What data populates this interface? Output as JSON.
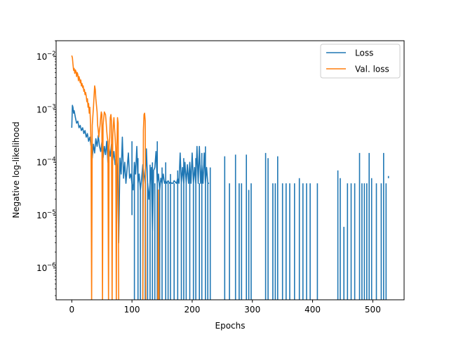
{
  "chart_data": {
    "type": "line",
    "title": "",
    "xlabel": "Epochs",
    "ylabel": "Negative log-likelihood",
    "yscale": "log",
    "xlim": [
      -26,
      552
    ],
    "ylim": [
      2.5e-07,
      0.02
    ],
    "xticks": [
      {
        "value": 0,
        "label": "0"
      },
      {
        "value": 100,
        "label": "100"
      },
      {
        "value": 200,
        "label": "200"
      },
      {
        "value": 300,
        "label": "300"
      },
      {
        "value": 400,
        "label": "400"
      },
      {
        "value": 500,
        "label": "500"
      }
    ],
    "yticks": [
      {
        "value": 1e-06,
        "base": "10",
        "exp": "−6"
      },
      {
        "value": 1e-05,
        "base": "10",
        "exp": "−5"
      },
      {
        "value": 0.0001,
        "base": "10",
        "exp": "−4"
      },
      {
        "value": 0.001,
        "base": "10",
        "exp": "−3"
      },
      {
        "value": 0.01,
        "base": "10",
        "exp": "−2"
      }
    ],
    "grid": false,
    "legend_position": "top-right",
    "series": [
      {
        "name": "Loss",
        "color": "#1f77b4",
        "points": [
          [
            0,
            0.00045
          ],
          [
            1,
            0.0012
          ],
          [
            2,
            0.0011
          ],
          [
            3,
            0.00085
          ],
          [
            4,
            0.00095
          ],
          [
            6,
            0.0007
          ],
          [
            8,
            0.00055
          ],
          [
            10,
            0.0006
          ],
          [
            12,
            0.00045
          ],
          [
            14,
            0.0005
          ],
          [
            16,
            0.0004
          ],
          [
            18,
            0.00045
          ],
          [
            20,
            0.00035
          ],
          [
            22,
            0.0004
          ],
          [
            24,
            0.0003
          ],
          [
            26,
            0.00035
          ],
          [
            28,
            0.00025
          ],
          [
            30,
            0.0003
          ],
          [
            32,
            0.0002
          ],
          [
            34,
            0.00012
          ],
          [
            36,
            0.00022
          ],
          [
            38,
            0.00015
          ],
          [
            40,
            0.00028
          ],
          [
            42,
            0.0002
          ],
          [
            44,
            0.00032
          ],
          [
            46,
            0.0002
          ],
          [
            48,
            0.00016
          ],
          [
            50,
            0.00024
          ],
          [
            52,
            0.00012
          ],
          [
            54,
            0.0002
          ],
          [
            56,
            0.00014
          ],
          [
            58,
            0.00025
          ],
          [
            60,
            0.0001
          ],
          [
            62,
            0.00018
          ],
          [
            64,
            0.00013
          ],
          [
            66,
            0.00022
          ],
          [
            68,
            0.00011
          ],
          [
            70,
            0.00016
          ],
          [
            72,
            9e-05
          ],
          [
            74,
            0.00013
          ],
          [
            76,
            8e-05
          ],
          [
            78,
            3e-06
          ],
          [
            80,
            0.00012
          ],
          [
            82,
            6e-05
          ],
          [
            84,
            0.0003
          ],
          [
            86,
            5e-05
          ],
          [
            88,
            0.0001
          ],
          [
            90,
            4e-05
          ],
          [
            92,
            8e-05
          ],
          [
            94,
            0.00015
          ],
          [
            96,
            5e-05
          ],
          [
            98,
            6e-05
          ],
          [
            100,
            4e-05
          ],
          [
            102,
            3e-05
          ],
          [
            104,
            0.0001
          ],
          [
            106,
            6e-05
          ],
          [
            108,
            0.0002
          ],
          [
            110,
            4e-05
          ],
          [
            112,
            6e-05
          ],
          [
            114,
            3e-05
          ],
          [
            116,
            5e-05
          ],
          [
            118,
            9e-05
          ],
          [
            120,
            6e-05
          ],
          [
            122,
            4e-05
          ],
          [
            124,
            0.00018
          ],
          [
            126,
            4e-05
          ],
          [
            128,
            2e-05
          ],
          [
            130,
            4e-05
          ],
          [
            132,
            8e-05
          ],
          [
            134,
            5e-06
          ],
          [
            136,
            7e-05
          ],
          [
            138,
            8e-05
          ],
          [
            140,
            0.00016
          ],
          [
            142,
            4e-05
          ],
          [
            144,
            6e-05
          ],
          [
            146,
            3e-05
          ],
          [
            148,
            5e-05
          ],
          [
            150,
            4e-05
          ],
          [
            152,
            6e-05
          ],
          [
            154,
            4e-05
          ],
          [
            156,
            4.5e-05
          ],
          [
            158,
            4e-05
          ],
          [
            160,
            4.5e-05
          ],
          [
            162,
            4e-05
          ],
          [
            164,
            4.2e-05
          ],
          [
            166,
            4e-05
          ],
          [
            168,
            4e-05
          ],
          [
            170,
            4.5e-05
          ],
          [
            172,
            4.2e-05
          ],
          [
            174,
            4e-05
          ],
          [
            176,
            5e-05
          ],
          [
            178,
            4e-05
          ],
          [
            180,
            0.00015
          ],
          [
            182,
            4e-05
          ],
          [
            184,
            8e-05
          ],
          [
            186,
            4e-05
          ],
          [
            188,
            0.0001
          ],
          [
            190,
            4e-05
          ],
          [
            192,
            9e-05
          ],
          [
            194,
            4e-05
          ],
          [
            196,
            0.0001
          ],
          [
            198,
            4e-05
          ],
          [
            200,
            0.00015
          ],
          [
            202,
            4e-05
          ],
          [
            204,
            8e-05
          ],
          [
            206,
            4e-05
          ],
          [
            208,
            0.0002
          ],
          [
            210,
            4e-05
          ],
          [
            212,
            0.0002
          ],
          [
            214,
            4e-05
          ],
          [
            216,
            9e-05
          ],
          [
            218,
            4e-05
          ],
          [
            220,
            0.00015
          ],
          [
            222,
            4e-05
          ],
          [
            224,
            8e-05
          ],
          [
            226,
            4e-05
          ],
          [
            228,
            4e-05
          ]
        ],
        "spikes": [
          [
            100,
            0.00025,
            1e-05
          ],
          [
            104,
            0.0001,
            2e-07
          ],
          [
            110,
            0.00012,
            2e-07
          ],
          [
            114,
            4e-05,
            2e-07
          ],
          [
            118,
            8e-05,
            2e-07
          ],
          [
            122,
            5e-05,
            2e-07
          ],
          [
            126,
            4e-05,
            2e-07
          ],
          [
            130,
            9e-05,
            2e-07
          ],
          [
            134,
            0.0001,
            2e-07
          ],
          [
            138,
            4e-05,
            2e-07
          ],
          [
            142,
            0.00025,
            2e-07
          ],
          [
            146,
            4e-05,
            2e-07
          ],
          [
            150,
            8e-05,
            2e-07
          ],
          [
            156,
            0.0001,
            2e-07
          ],
          [
            160,
            4e-05,
            2e-07
          ],
          [
            164,
            6e-05,
            2e-07
          ],
          [
            170,
            4e-05,
            2e-07
          ],
          [
            176,
            7e-05,
            2e-07
          ],
          [
            182,
            4e-05,
            2e-07
          ],
          [
            186,
            0.00012,
            2e-07
          ],
          [
            190,
            4e-05,
            2e-07
          ],
          [
            196,
            9e-05,
            2e-07
          ],
          [
            202,
            4e-05,
            2e-07
          ],
          [
            206,
            0.00012,
            2e-07
          ],
          [
            212,
            4e-05,
            2e-07
          ],
          [
            216,
            0.00015,
            2e-07
          ],
          [
            222,
            0.0002,
            2e-07
          ],
          [
            226,
            4e-05,
            2e-07
          ],
          [
            230,
            8e-05,
            2e-07
          ],
          [
            254,
            0.00013,
            2e-07
          ],
          [
            262,
            4e-05,
            2e-07
          ],
          [
            272,
            0.00014,
            2e-07
          ],
          [
            278,
            4e-05,
            2e-07
          ],
          [
            282,
            4e-05,
            2e-07
          ],
          [
            290,
            0.00014,
            2e-07
          ],
          [
            294,
            3e-05,
            2e-07
          ],
          [
            298,
            4e-05,
            2e-07
          ],
          [
            322,
            0.00015,
            2e-07
          ],
          [
            326,
            0.00012,
            2e-07
          ],
          [
            334,
            4e-05,
            2e-07
          ],
          [
            338,
            4e-05,
            2e-07
          ],
          [
            342,
            0.00013,
            2e-07
          ],
          [
            350,
            4e-05,
            2e-07
          ],
          [
            356,
            4e-05,
            2e-07
          ],
          [
            362,
            4e-05,
            2e-07
          ],
          [
            370,
            4e-05,
            2e-07
          ],
          [
            378,
            5e-05,
            2e-07
          ],
          [
            384,
            4e-05,
            2e-07
          ],
          [
            390,
            4e-05,
            2e-07
          ],
          [
            396,
            4e-05,
            2e-07
          ],
          [
            408,
            4e-05,
            2e-07
          ],
          [
            442,
            7e-05,
            2e-07
          ],
          [
            446,
            5e-05,
            2e-07
          ],
          [
            452,
            6e-06,
            2e-07
          ],
          [
            458,
            4e-05,
            2e-07
          ],
          [
            464,
            4e-05,
            2e-07
          ],
          [
            470,
            4e-05,
            2e-07
          ],
          [
            478,
            0.00015,
            2e-07
          ],
          [
            482,
            4e-05,
            2e-07
          ],
          [
            486,
            4e-05,
            2e-07
          ],
          [
            490,
            4e-05,
            2e-07
          ],
          [
            494,
            0.00015,
            2e-07
          ],
          [
            498,
            5e-05,
            2e-07
          ],
          [
            506,
            4e-05,
            2e-07
          ],
          [
            514,
            4e-05,
            2e-07
          ],
          [
            518,
            0.00015,
            2e-07
          ],
          [
            522,
            4e-05,
            2e-07
          ],
          [
            526,
            5.5e-05,
            5e-05
          ]
        ]
      },
      {
        "name": "Val. loss",
        "color": "#ff7f0e",
        "points": [
          [
            0,
            0.0105
          ],
          [
            1,
            0.0095
          ],
          [
            2,
            0.0072
          ],
          [
            3,
            0.0055
          ],
          [
            4,
            0.006
          ],
          [
            5,
            0.0048
          ],
          [
            6,
            0.0056
          ],
          [
            7,
            0.0052
          ],
          [
            8,
            0.0042
          ],
          [
            9,
            0.005
          ],
          [
            10,
            0.0046
          ],
          [
            11,
            0.0035
          ],
          [
            12,
            0.0042
          ],
          [
            13,
            0.0038
          ],
          [
            14,
            0.0032
          ],
          [
            15,
            0.0036
          ],
          [
            16,
            0.0028
          ],
          [
            17,
            0.0031
          ],
          [
            18,
            0.0026
          ],
          [
            19,
            0.0028
          ],
          [
            20,
            0.0022
          ],
          [
            21,
            0.0024
          ],
          [
            22,
            0.0019
          ],
          [
            23,
            0.0021
          ],
          [
            24,
            0.0018
          ],
          [
            25,
            0.0014
          ],
          [
            26,
            0.0016
          ],
          [
            27,
            0.0011
          ],
          [
            28,
            0.0013
          ],
          [
            29,
            0.00085
          ],
          [
            30,
            0.0011
          ],
          [
            31,
            0.0006
          ],
          [
            32,
            0.0002
          ],
          [
            33,
            2e-07
          ],
          [
            34,
            0.0005
          ],
          [
            36,
            0.0011
          ],
          [
            37,
            0.0018
          ],
          [
            38,
            0.0028
          ],
          [
            39,
            0.0024
          ],
          [
            40,
            0.0016
          ],
          [
            41,
            0.0012
          ],
          [
            42,
            0.0009
          ],
          [
            43,
            0.0005
          ],
          [
            44,
            0.0004
          ],
          [
            45,
            0.0003
          ],
          [
            46,
            0.0004
          ],
          [
            47,
            0.0005
          ],
          [
            48,
            0.0007
          ],
          [
            49,
            0.0009
          ],
          [
            50,
            0.0008
          ],
          [
            51,
            2e-07
          ],
          [
            52,
            0.0005
          ],
          [
            54,
            0.0009
          ],
          [
            56,
            0.0008
          ],
          [
            57,
            0.0006
          ],
          [
            58,
            0.0004
          ],
          [
            59,
            0.0003
          ],
          [
            60,
            0.00025
          ],
          [
            61,
            2e-07
          ],
          [
            62,
            0.0002
          ],
          [
            63,
            0.0003
          ],
          [
            64,
            0.0007
          ],
          [
            65,
            0.0008
          ],
          [
            66,
            0.0006
          ],
          [
            67,
            2e-07
          ],
          [
            68,
            0.0003
          ],
          [
            69,
            0.0005
          ],
          [
            70,
            0.0007
          ],
          [
            71,
            0.00045
          ],
          [
            72,
            0.0003
          ],
          [
            73,
            0.00018
          ],
          [
            74,
            2e-07
          ],
          [
            75,
            0.0002
          ],
          [
            76,
            0.0007
          ],
          [
            77,
            0.00055
          ],
          [
            78,
            2e-07
          ],
          [
            118,
            2e-07
          ],
          [
            119,
            0.0004
          ],
          [
            120,
            0.0008
          ],
          [
            121,
            0.00085
          ],
          [
            122,
            0.0006
          ],
          [
            123,
            2e-07
          ],
          [
            143,
            2e-07
          ],
          [
            144,
            3e-05
          ],
          [
            145,
            2e-07
          ]
        ]
      }
    ]
  }
}
